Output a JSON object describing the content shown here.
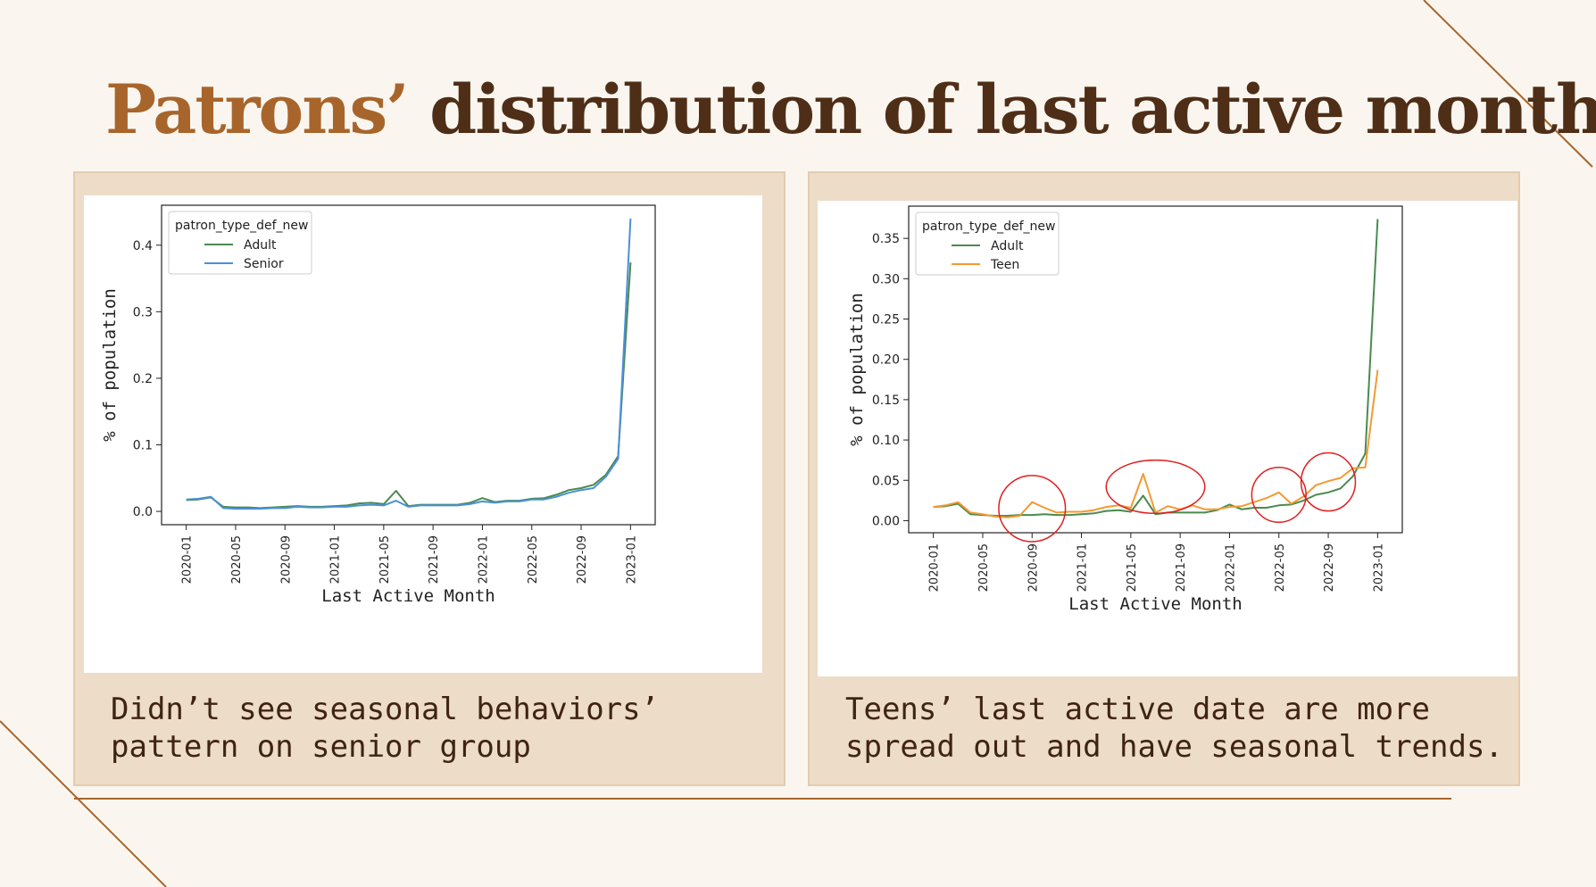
{
  "slide": {
    "title_accent": "Patrons’",
    "title_rest": " distribution of last active month",
    "accent_color": "#a8652b",
    "title_color": "#4f2e17",
    "card_color": "#eddcc7"
  },
  "left_card": {
    "caption_line1": "Didn’t see seasonal behaviors’",
    "caption_line2": "pattern on senior group"
  },
  "right_card": {
    "caption_line1": "Teens’ last active date are more",
    "caption_line2": "spread out and have seasonal trends."
  },
  "chart_data": [
    {
      "type": "line",
      "xlabel": "Last Active Month",
      "ylabel": "% of population",
      "x_ticks": [
        "2020-01",
        "2020-05",
        "2020-09",
        "2021-01",
        "2021-05",
        "2021-09",
        "2022-01",
        "2022-05",
        "2022-09",
        "2023-01"
      ],
      "x_range": [
        "2019-11",
        "2023-03"
      ],
      "ylim": [
        -0.02,
        0.46
      ],
      "y_ticks": [
        "0.0",
        "0.1",
        "0.2",
        "0.3",
        "0.4"
      ],
      "grid": false,
      "legend": {
        "title": "patron_type_def_new",
        "position": "top-left"
      },
      "series": [
        {
          "name": "Adult",
          "color": "#4a8a4f",
          "x": [
            "2020-01",
            "2020-02",
            "2020-03",
            "2020-04",
            "2020-05",
            "2020-06",
            "2020-07",
            "2020-08",
            "2020-09",
            "2020-10",
            "2020-11",
            "2020-12",
            "2021-01",
            "2021-02",
            "2021-03",
            "2021-04",
            "2021-05",
            "2021-06",
            "2021-07",
            "2021-08",
            "2021-09",
            "2021-10",
            "2021-11",
            "2021-12",
            "2022-01",
            "2022-02",
            "2022-03",
            "2022-04",
            "2022-05",
            "2022-06",
            "2022-07",
            "2022-08",
            "2022-09",
            "2022-10",
            "2022-11",
            "2022-12",
            "2023-01"
          ],
          "values": [
            0.017,
            0.018,
            0.021,
            0.007,
            0.006,
            0.006,
            0.005,
            0.006,
            0.007,
            0.008,
            0.007,
            0.007,
            0.008,
            0.009,
            0.012,
            0.013,
            0.011,
            0.031,
            0.008,
            0.01,
            0.01,
            0.01,
            0.01,
            0.013,
            0.02,
            0.014,
            0.016,
            0.016,
            0.019,
            0.02,
            0.025,
            0.032,
            0.035,
            0.04,
            0.055,
            0.083,
            0.374
          ]
        },
        {
          "name": "Senior",
          "color": "#4a90d9",
          "x": [
            "2020-01",
            "2020-02",
            "2020-03",
            "2020-04",
            "2020-05",
            "2020-06",
            "2020-07",
            "2020-08",
            "2020-09",
            "2020-10",
            "2020-11",
            "2020-12",
            "2021-01",
            "2021-02",
            "2021-03",
            "2021-04",
            "2021-05",
            "2021-06",
            "2021-07",
            "2021-08",
            "2021-09",
            "2021-10",
            "2021-11",
            "2021-12",
            "2022-01",
            "2022-02",
            "2022-03",
            "2022-04",
            "2022-05",
            "2022-06",
            "2022-07",
            "2022-08",
            "2022-09",
            "2022-10",
            "2022-11",
            "2022-12",
            "2023-01"
          ],
          "values": [
            0.018,
            0.019,
            0.022,
            0.005,
            0.004,
            0.004,
            0.004,
            0.005,
            0.005,
            0.007,
            0.006,
            0.006,
            0.007,
            0.007,
            0.009,
            0.01,
            0.009,
            0.016,
            0.007,
            0.009,
            0.009,
            0.009,
            0.009,
            0.011,
            0.015,
            0.013,
            0.015,
            0.015,
            0.018,
            0.018,
            0.022,
            0.028,
            0.032,
            0.035,
            0.052,
            0.079,
            0.44
          ]
        }
      ]
    },
    {
      "type": "line",
      "xlabel": "Last Active Month",
      "ylabel": "% of population",
      "x_ticks": [
        "2020-01",
        "2020-05",
        "2020-09",
        "2021-01",
        "2021-05",
        "2021-09",
        "2022-01",
        "2022-05",
        "2022-09",
        "2023-01"
      ],
      "x_range": [
        "2019-11",
        "2023-03"
      ],
      "ylim": [
        -0.015,
        0.39
      ],
      "y_ticks": [
        "0.00",
        "0.05",
        "0.10",
        "0.15",
        "0.20",
        "0.25",
        "0.30",
        "0.35"
      ],
      "grid": false,
      "legend": {
        "title": "patron_type_def_new",
        "position": "top-left"
      },
      "annotations": [
        {
          "type": "circle",
          "color": "#e01f1f",
          "center_x": "2020-09",
          "center_y": 0.015,
          "rx_months": 2.7,
          "ry": 0.041
        },
        {
          "type": "circle",
          "color": "#e01f1f",
          "center_x": "2021-07",
          "center_y": 0.042,
          "rx_months": 4.0,
          "ry": 0.033
        },
        {
          "type": "circle",
          "color": "#e01f1f",
          "center_x": "2022-05",
          "center_y": 0.032,
          "rx_months": 2.2,
          "ry": 0.034
        },
        {
          "type": "circle",
          "color": "#e01f1f",
          "center_x": "2022-09",
          "center_y": 0.048,
          "rx_months": 2.2,
          "ry": 0.036
        }
      ],
      "series": [
        {
          "name": "Adult",
          "color": "#4a8a4f",
          "x": [
            "2020-01",
            "2020-02",
            "2020-03",
            "2020-04",
            "2020-05",
            "2020-06",
            "2020-07",
            "2020-08",
            "2020-09",
            "2020-10",
            "2020-11",
            "2020-12",
            "2021-01",
            "2021-02",
            "2021-03",
            "2021-04",
            "2021-05",
            "2021-06",
            "2021-07",
            "2021-08",
            "2021-09",
            "2021-10",
            "2021-11",
            "2021-12",
            "2022-01",
            "2022-02",
            "2022-03",
            "2022-04",
            "2022-05",
            "2022-06",
            "2022-07",
            "2022-08",
            "2022-09",
            "2022-10",
            "2022-11",
            "2022-12",
            "2023-01"
          ],
          "values": [
            0.017,
            0.018,
            0.021,
            0.008,
            0.007,
            0.006,
            0.006,
            0.007,
            0.007,
            0.008,
            0.007,
            0.007,
            0.008,
            0.009,
            0.012,
            0.013,
            0.011,
            0.031,
            0.008,
            0.01,
            0.01,
            0.01,
            0.01,
            0.013,
            0.02,
            0.014,
            0.016,
            0.016,
            0.019,
            0.02,
            0.025,
            0.032,
            0.035,
            0.04,
            0.055,
            0.083,
            0.374
          ]
        },
        {
          "name": "Teen",
          "color": "#f39a32",
          "x": [
            "2020-01",
            "2020-02",
            "2020-03",
            "2020-04",
            "2020-05",
            "2020-06",
            "2020-07",
            "2020-08",
            "2020-09",
            "2020-10",
            "2020-11",
            "2020-12",
            "2021-01",
            "2021-02",
            "2021-03",
            "2021-04",
            "2021-05",
            "2021-06",
            "2021-07",
            "2021-08",
            "2021-09",
            "2021-10",
            "2021-11",
            "2021-12",
            "2022-01",
            "2022-02",
            "2022-03",
            "2022-04",
            "2022-05",
            "2022-06",
            "2022-07",
            "2022-08",
            "2022-09",
            "2022-10",
            "2022-11",
            "2022-12",
            "2023-01"
          ],
          "values": [
            0.017,
            0.019,
            0.023,
            0.01,
            0.008,
            0.005,
            0.004,
            0.006,
            0.023,
            0.016,
            0.01,
            0.011,
            0.011,
            0.013,
            0.017,
            0.019,
            0.016,
            0.058,
            0.01,
            0.018,
            0.014,
            0.019,
            0.014,
            0.014,
            0.017,
            0.018,
            0.023,
            0.028,
            0.035,
            0.021,
            0.03,
            0.044,
            0.049,
            0.053,
            0.065,
            0.066,
            0.187
          ]
        }
      ]
    }
  ]
}
